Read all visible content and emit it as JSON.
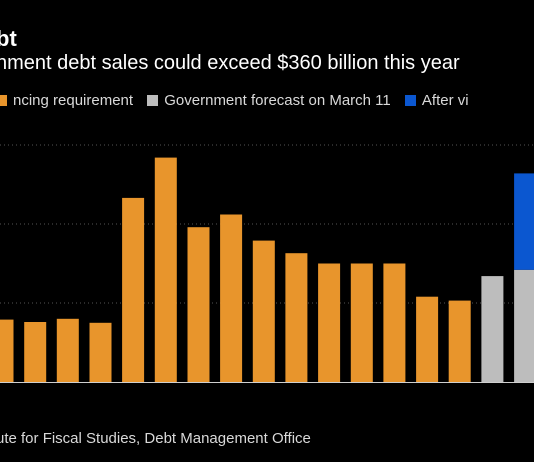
{
  "title": "bt",
  "subtitle": "nment debt sales could exceed $360 billion this year",
  "legend": [
    {
      "label": "ncing requirement",
      "color": "#e8952c"
    },
    {
      "label": "Government forecast on March 11",
      "color": "#bdbdbd"
    },
    {
      "label": "After vi",
      "color": "#0b57d0"
    }
  ],
  "source": "ute for Fiscal Studies, Debt Management Office",
  "colors": {
    "actual": "#e8952c",
    "forecast": "#bdbdbd",
    "after": "#0b57d0",
    "grid": "#555555",
    "axis": "#cfcfcf"
  },
  "chart_data": {
    "type": "bar",
    "stacked": true,
    "grid": true,
    "gridlines": [
      0,
      1,
      2,
      3
    ],
    "ylim": [
      0,
      3.05
    ],
    "title": "bt",
    "subtitle": "nment debt sales could exceed $360 billion this year",
    "xlabel": "",
    "ylabel": "",
    "series": [
      {
        "name": "ncing requirement",
        "color": "#e8952c",
        "values": [
          0.79,
          0.76,
          0.8,
          0.75,
          2.33,
          2.84,
          1.96,
          2.12,
          1.79,
          1.63,
          1.5,
          1.5,
          1.5,
          1.08,
          1.03,
          0,
          0
        ]
      },
      {
        "name": "Government forecast on March 11",
        "color": "#bdbdbd",
        "values": [
          0,
          0,
          0,
          0,
          0,
          0,
          0,
          0,
          0,
          0,
          0,
          0,
          0,
          0,
          0,
          1.34,
          1.42
        ]
      },
      {
        "name": "After vi",
        "color": "#0b57d0",
        "values": [
          0,
          0,
          0,
          0,
          0,
          0,
          0,
          0,
          0,
          0,
          0,
          0,
          0,
          0,
          0,
          0,
          1.22
        ]
      }
    ]
  }
}
